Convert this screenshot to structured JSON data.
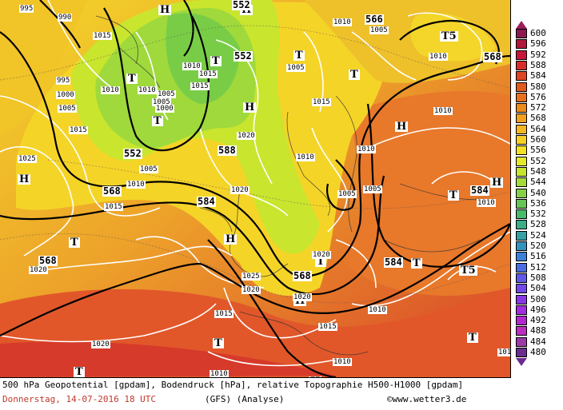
{
  "map": {
    "title": "500 hPa Geopotential [gpdam], Bodendruck [hPa], relative Topographie H500-H1000 [gpdam]",
    "date_time": "Donnerstag, 14-07-2016  18 UTC",
    "model": "(GFS)  (Analyse)",
    "copyright": "©www.wetter3.de",
    "legend": {
      "values": [
        "600",
        "596",
        "592",
        "588",
        "584",
        "580",
        "576",
        "572",
        "568",
        "564",
        "560",
        "556",
        "552",
        "548",
        "544",
        "540",
        "536",
        "532",
        "528",
        "524",
        "520",
        "516",
        "512",
        "508",
        "504",
        "500",
        "496",
        "492",
        "488",
        "484",
        "480"
      ],
      "colors": [
        "#8b1a4e",
        "#b0173a",
        "#c8143a",
        "#d72d2a",
        "#de4524",
        "#e35a1f",
        "#e8701c",
        "#ed8a1c",
        "#f1a01f",
        "#f5b822",
        "#f7cf24",
        "#f4e024",
        "#e3ea2a",
        "#c7e52c",
        "#a6dc3a",
        "#86d048",
        "#66c555",
        "#49b96a",
        "#3cad85",
        "#36a0a3",
        "#3492bf",
        "#3b80d6",
        "#4b6ce0",
        "#5f59e6",
        "#7347e8",
        "#8a37e6",
        "#a22ce0",
        "#b526d0",
        "#bd2dc0",
        "#9c3aa8",
        "#6b2c8f"
      ]
    },
    "highs_lows": [
      {
        "kind": "H"
      },
      {
        "kind": "T"
      },
      {
        "kind": "T"
      },
      {
        "kind": "T"
      },
      {
        "kind": "H"
      },
      {
        "kind": "H"
      },
      {
        "kind": "T"
      },
      {
        "kind": "T5"
      },
      {
        "kind": "H"
      },
      {
        "kind": "H"
      },
      {
        "kind": "T"
      },
      {
        "kind": "H"
      },
      {
        "kind": "T"
      },
      {
        "kind": "T"
      },
      {
        "kind": "T"
      },
      {
        "kind": "H"
      },
      {
        "kind": "T"
      },
      {
        "kind": "T5"
      },
      {
        "kind": "T"
      },
      {
        "kind": "H"
      },
      {
        "kind": "T"
      },
      {
        "kind": "T"
      },
      {
        "kind": "H"
      }
    ],
    "geopotential_labels": [
      "552",
      "552",
      "552",
      "568",
      "568",
      "588",
      "584",
      "584",
      "584",
      "568",
      "568",
      "566"
    ],
    "pressure_labels": [
      "995",
      "990",
      "995",
      "1000",
      "1005",
      "1010",
      "1015",
      "1025",
      "1005",
      "1010",
      "1010",
      "1015",
      "1005",
      "1000",
      "1010",
      "1015",
      "1005",
      "1020",
      "1010",
      "1005",
      "1015",
      "1020",
      "1010",
      "1020",
      "1025",
      "1015",
      "1015",
      "1010",
      "1010",
      "1020",
      "1005",
      "1010",
      "1010",
      "1015",
      "1010",
      "1020",
      "1005",
      "1020",
      "1010",
      "1005",
      "1010",
      "1010",
      "1015",
      "1020"
    ]
  }
}
